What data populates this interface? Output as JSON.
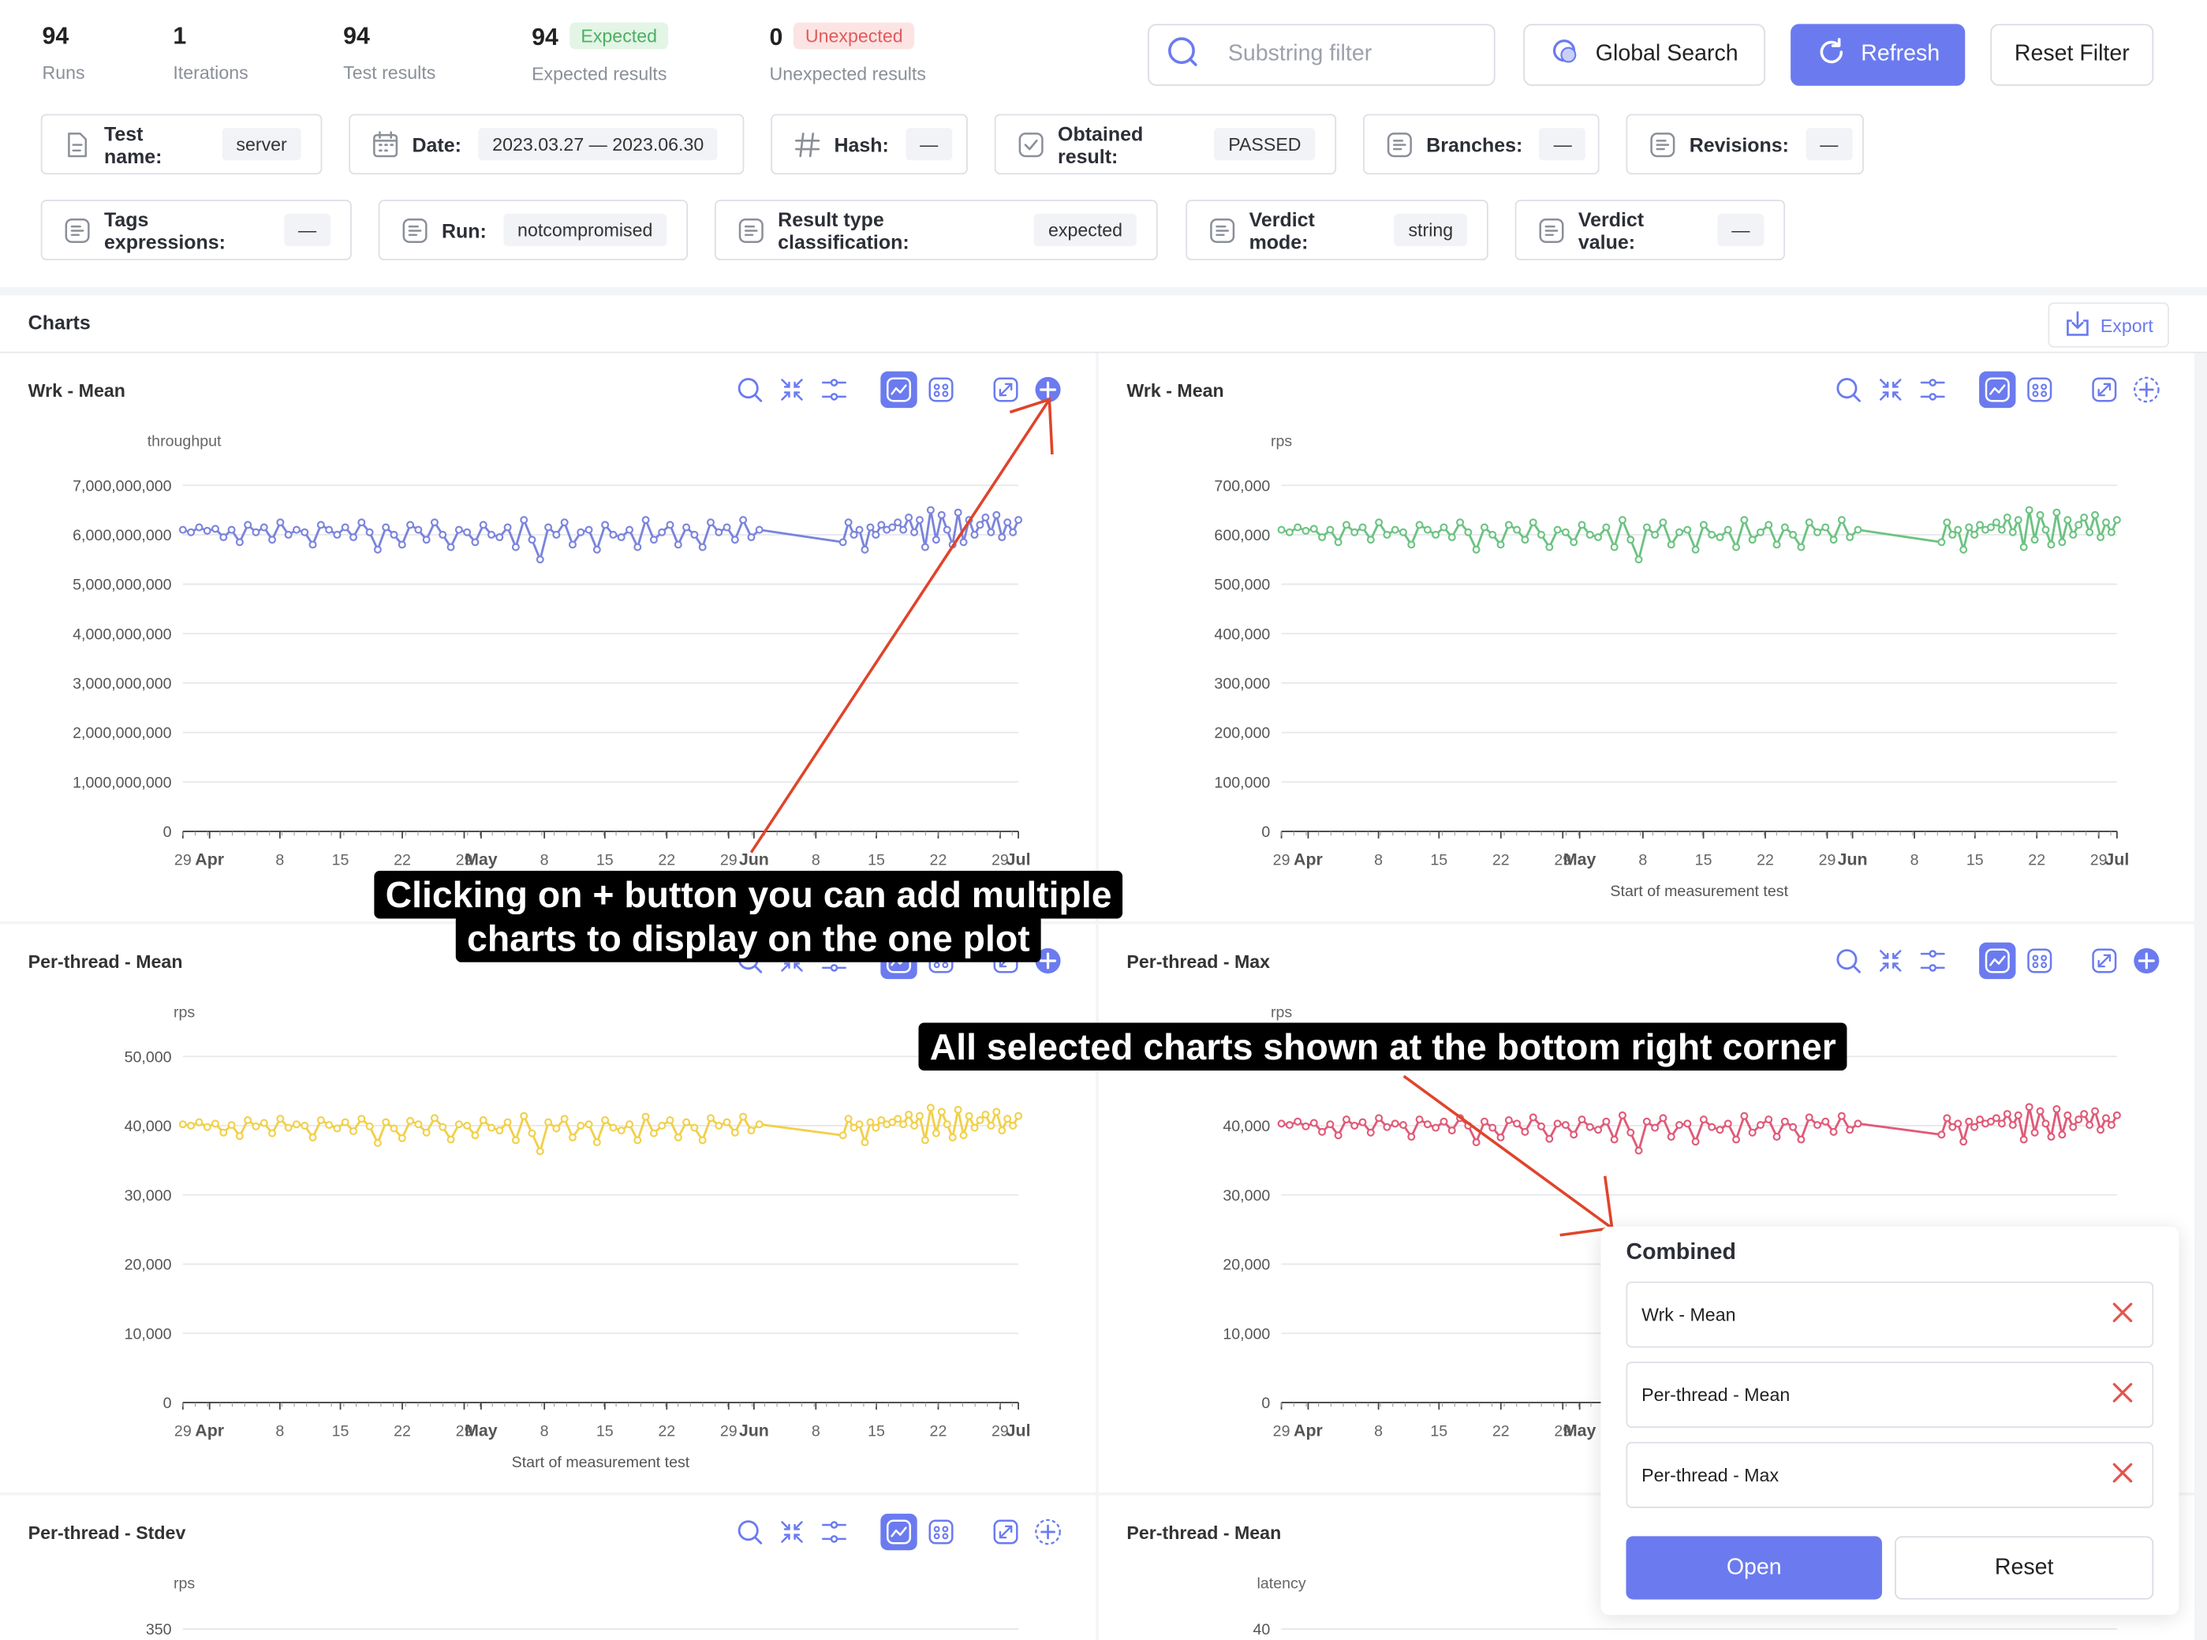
{
  "stats": [
    {
      "value": "94",
      "label": "Runs"
    },
    {
      "value": "1",
      "label": "Iterations"
    },
    {
      "value": "94",
      "label": "Test results"
    },
    {
      "value": "94",
      "label": "Expected results",
      "badge": "Expected"
    },
    {
      "value": "0",
      "label": "Unexpected results",
      "badge": "Unexpected"
    }
  ],
  "search": {
    "placeholder": "Substring filter"
  },
  "buttons": {
    "global_search": "Global Search",
    "refresh": "Refresh",
    "reset_filter": "Reset Filter"
  },
  "filters": [
    {
      "key": "Test name:",
      "value": "server",
      "icon": "document-icon"
    },
    {
      "key": "Date:",
      "value": "2023.03.27 — 2023.06.30",
      "icon": "calendar-icon"
    },
    {
      "key": "Hash:",
      "value": "—",
      "icon": "hash-icon"
    },
    {
      "key": "Obtained result:",
      "value": "PASSED",
      "icon": "check-square-icon"
    },
    {
      "key": "Branches:",
      "value": "—",
      "icon": "list-icon"
    },
    {
      "key": "Revisions:",
      "value": "—",
      "icon": "list-icon"
    },
    {
      "key": "Tags expressions:",
      "value": "—",
      "icon": "list-icon"
    },
    {
      "key": "Run:",
      "value": "notcompromised",
      "icon": "list-icon"
    },
    {
      "key": "Result type classification:",
      "value": "expected",
      "icon": "list-icon"
    },
    {
      "key": "Verdict mode:",
      "value": "string",
      "icon": "list-icon"
    },
    {
      "key": "Verdict value:",
      "value": "—",
      "icon": "list-icon"
    }
  ],
  "charts_section": {
    "title": "Charts",
    "export_label": "Export"
  },
  "x_ticks": [
    "29",
    "Apr",
    "8",
    "15",
    "22",
    "29",
    "May",
    "8",
    "15",
    "22",
    "29",
    "Jun",
    "8",
    "15",
    "22",
    "29",
    "Jul"
  ],
  "chart_data": [
    {
      "type": "line",
      "title": "Wrk - Mean",
      "ylabel": "throughput",
      "xlabel": "",
      "ylim": [
        0,
        7000000000
      ],
      "yticks": [
        "7,000,000,000",
        "6,000,000,000",
        "5,000,000,000",
        "4,000,000,000",
        "3,000,000,000",
        "2,000,000,000",
        "1,000,000,000",
        "0"
      ],
      "x_range": [
        "2023-03-27",
        "2023-07-01"
      ],
      "color": "#7b84dc",
      "add_active": true,
      "series": [
        {
          "values": [
            6100000000,
            6050000000,
            6150000000,
            6080000000,
            6120000000,
            5950000000,
            6100000000,
            5850000000,
            6200000000,
            6050000000,
            6150000000,
            5900000000,
            6250000000,
            6000000000,
            6100000000,
            6050000000,
            5800000000,
            6200000000,
            6100000000,
            6000000000,
            6150000000,
            5950000000,
            6250000000,
            6050000000,
            5700000000,
            6150000000,
            6000000000,
            5800000000,
            6200000000,
            6100000000,
            5900000000,
            6250000000,
            6000000000,
            5750000000,
            6100000000,
            6050000000,
            5850000000,
            6200000000,
            6000000000,
            5950000000,
            6150000000,
            5750000000,
            6300000000,
            5900000000,
            5500000000,
            6150000000,
            6000000000,
            6250000000,
            5800000000,
            6050000000,
            6100000000,
            5700000000,
            6200000000,
            6000000000,
            5950000000,
            6100000000,
            5750000000,
            6300000000,
            5900000000,
            6050000000,
            6200000000,
            5800000000,
            6150000000,
            6000000000,
            5750000000,
            6250000000,
            6050000000,
            6150000000,
            5900000000,
            6300000000,
            5950000000,
            6100000000,
            5850000000,
            6250000000,
            6000000000,
            6100000000,
            5700000000,
            6150000000,
            6000000000,
            6200000000,
            6100000000,
            6150000000,
            6250000000,
            6100000000,
            6350000000,
            6050000000,
            6300000000,
            5750000000,
            6500000000,
            5900000000,
            6400000000,
            6100000000,
            5800000000,
            6450000000,
            5850000000,
            6300000000,
            6000000000,
            6200000000,
            6350000000,
            6050000000,
            6400000000,
            5950000000,
            6250000000,
            6050000000,
            6300000000
          ]
        }
      ]
    },
    {
      "type": "line",
      "title": "Wrk - Mean",
      "ylabel": "rps",
      "xlabel": "Start of measurement test",
      "ylim": [
        0,
        700000
      ],
      "yticks": [
        "700,000",
        "600,000",
        "500,000",
        "400,000",
        "300,000",
        "200,000",
        "100,000",
        "0"
      ],
      "x_range": [
        "2023-03-27",
        "2023-07-01"
      ],
      "color": "#6cc382",
      "add_active": false,
      "series": [
        {
          "values": [
            610000,
            605000,
            615000,
            608000,
            612000,
            595000,
            610000,
            585000,
            620000,
            605000,
            615000,
            590000,
            625000,
            600000,
            610000,
            605000,
            580000,
            620000,
            610000,
            600000,
            615000,
            595000,
            625000,
            605000,
            570000,
            615000,
            600000,
            580000,
            620000,
            610000,
            590000,
            625000,
            600000,
            575000,
            610000,
            605000,
            585000,
            620000,
            600000,
            595000,
            615000,
            575000,
            630000,
            590000,
            550000,
            615000,
            600000,
            625000,
            580000,
            605000,
            610000,
            570000,
            620000,
            600000,
            595000,
            610000,
            575000,
            630000,
            590000,
            605000,
            620000,
            580000,
            615000,
            600000,
            575000,
            625000,
            605000,
            615000,
            590000,
            630000,
            595000,
            610000,
            585000,
            625000,
            600000,
            610000,
            570000,
            615000,
            600000,
            620000,
            610000,
            615000,
            625000,
            610000,
            635000,
            605000,
            630000,
            575000,
            650000,
            590000,
            640000,
            610000,
            580000,
            645000,
            585000,
            630000,
            600000,
            620000,
            635000,
            605000,
            640000,
            595000,
            625000,
            605000,
            630000
          ]
        }
      ]
    },
    {
      "type": "line",
      "title": "Per-thread - Mean",
      "ylabel": "rps",
      "xlabel": "Start of measurement test",
      "ylim": [
        0,
        50000
      ],
      "yticks": [
        "50,000",
        "40,000",
        "30,000",
        "20,000",
        "10,000",
        "0"
      ],
      "x_range": [
        "2023-03-27",
        "2023-07-01"
      ],
      "color": "#f1d04b",
      "add_active": true,
      "series": [
        {
          "values": [
            40200,
            40000,
            40500,
            39800,
            40300,
            39000,
            40100,
            38500,
            40800,
            39900,
            40400,
            38900,
            41000,
            39700,
            40200,
            40000,
            38300,
            40800,
            40100,
            39600,
            40500,
            39200,
            41000,
            39900,
            37500,
            40500,
            39600,
            38200,
            40700,
            40200,
            39000,
            41100,
            39800,
            38000,
            40200,
            40000,
            38600,
            40800,
            39700,
            39300,
            40500,
            37900,
            41400,
            38900,
            36300,
            40500,
            39600,
            41000,
            38300,
            40000,
            40200,
            37600,
            40800,
            39700,
            39300,
            40200,
            37900,
            41300,
            38900,
            40000,
            40800,
            38300,
            40500,
            39700,
            37900,
            41100,
            40000,
            40500,
            39000,
            41300,
            39300,
            40200,
            38600,
            41000,
            39700,
            40200,
            37600,
            40500,
            39700,
            40800,
            40200,
            40500,
            41000,
            40200,
            41600,
            40000,
            41400,
            37900,
            42600,
            38900,
            42000,
            40200,
            38300,
            42300,
            38600,
            41400,
            39700,
            40800,
            41600,
            40000,
            42000,
            39300,
            41000,
            40000,
            41400
          ]
        }
      ]
    },
    {
      "type": "line",
      "title": "Per-thread - Max",
      "ylabel": "rps",
      "xlabel": "Start of measurement test",
      "ylim": [
        0,
        50000
      ],
      "yticks": [
        "50,000",
        "40,000",
        "30,000",
        "20,000",
        "10,000",
        "0"
      ],
      "x_range": [
        "2023-03-27",
        "2023-07-01"
      ],
      "color": "#e05a78",
      "add_active": true,
      "series": [
        {
          "values": [
            40300,
            40100,
            40600,
            39900,
            40400,
            39100,
            40200,
            38600,
            40900,
            40000,
            40500,
            39000,
            41100,
            39800,
            40300,
            40100,
            38400,
            40900,
            40200,
            39700,
            40600,
            39300,
            41100,
            40000,
            37600,
            40600,
            39700,
            38300,
            40800,
            40300,
            39100,
            41200,
            39900,
            38100,
            40300,
            40100,
            38700,
            40900,
            39800,
            39400,
            40600,
            38000,
            41500,
            39000,
            36400,
            40600,
            39700,
            41100,
            38400,
            40100,
            40300,
            37700,
            40900,
            39800,
            39400,
            40300,
            38000,
            41400,
            39000,
            40100,
            40900,
            38400,
            40600,
            39800,
            38000,
            41200,
            40100,
            40600,
            39100,
            41400,
            39400,
            40300,
            38700,
            41100,
            39800,
            40300,
            37700,
            40600,
            39800,
            40900,
            40300,
            40600,
            41100,
            40300,
            41700,
            40100,
            41500,
            38000,
            42700,
            39000,
            42100,
            40300,
            38400,
            42400,
            38700,
            41500,
            39800,
            40900,
            41700,
            40100,
            42100,
            39400,
            41100,
            40100,
            41500
          ]
        }
      ]
    },
    {
      "type": "line",
      "title": "Per-thread - Stdev",
      "ylabel": "rps",
      "xlabel": "",
      "ylim": [
        0,
        350
      ],
      "yticks": [
        "350"
      ],
      "color": "#7b84dc",
      "add_active": false,
      "series": []
    },
    {
      "type": "line",
      "title": "Per-thread - Mean",
      "ylabel": "latency",
      "xlabel": "",
      "ylim": [
        0,
        40
      ],
      "yticks": [
        "40"
      ],
      "color": "#7b84dc",
      "add_active": false,
      "series": []
    }
  ],
  "callouts": {
    "add_line1": "Clicking on + button you can add multiple",
    "add_line2": "charts to display on the one plot",
    "selected": "All selected charts shown at the bottom right corner"
  },
  "combined": {
    "title": "Combined",
    "items": [
      "Wrk - Mean",
      "Per-thread - Mean",
      "Per-thread - Max"
    ],
    "open_label": "Open",
    "reset_label": "Reset"
  },
  "colors": {
    "accent": "#6b7bef",
    "arrow": "#e0442a",
    "remove": "#e5534b"
  }
}
